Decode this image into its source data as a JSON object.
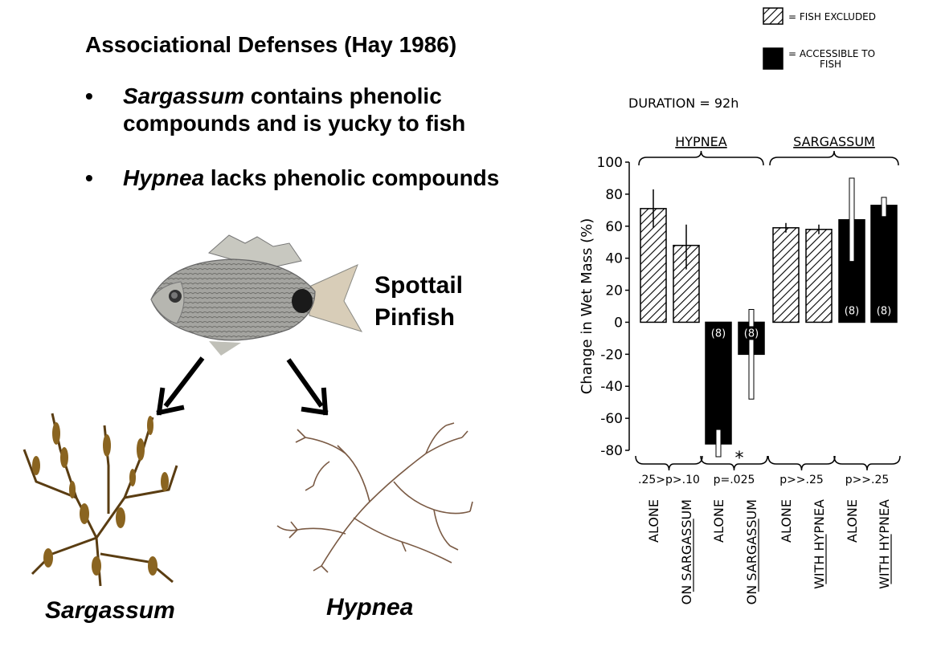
{
  "slide": {
    "title": "Associational Defenses (Hay 1986)",
    "bullets": [
      {
        "marker": "•",
        "italic": "Sargassum",
        "rest": " contains phenolic",
        "line2": "compounds and is yucky to fish"
      },
      {
        "marker": "•",
        "italic": "Hypnea",
        "rest": " lacks phenolic compounds"
      }
    ],
    "fish_label_line1": "Spottail",
    "fish_label_line2": "Pinfish",
    "caption_left": "Sargassum",
    "caption_right": "Hypnea"
  },
  "colors": {
    "text": "#000000",
    "fish_body": "#9a9a96",
    "sargassum": "#7a5a1e",
    "hypnea": "#8a6a50"
  },
  "chart_data": {
    "type": "bar",
    "duration_label": "DURATION = 92h",
    "legend": [
      {
        "label": "= FISH EXCLUDED",
        "pattern": "hatched"
      },
      {
        "label": "= ACCESSIBLE TO FISH",
        "pattern": "solid"
      }
    ],
    "legend_position": "top-right",
    "ylabel": "Change in Wet Mass (%)",
    "ylim": [
      -80,
      100
    ],
    "yticks": [
      100,
      80,
      60,
      40,
      20,
      0,
      -20,
      -40,
      -60,
      -80
    ],
    "groups": [
      {
        "label": "HYPNEA",
        "bars": [
          0,
          1,
          2,
          3
        ]
      },
      {
        "label": "SARGASSUM",
        "bars": [
          4,
          5,
          6,
          7
        ]
      }
    ],
    "bars": [
      {
        "label": "ALONE",
        "treatment": "FISH EXCLUDED",
        "value": 71,
        "err_low": 59,
        "err_high": 83,
        "n_label": ""
      },
      {
        "label": "ON SARGASSUM",
        "treatment": "FISH EXCLUDED",
        "value": 48,
        "err_low": 33,
        "err_high": 61,
        "n_label": ""
      },
      {
        "label": "ALONE",
        "treatment": "ACCESSIBLE TO FISH",
        "value": -76,
        "err_low": -84,
        "err_high": -67,
        "n_label": "(8)"
      },
      {
        "label": "ON SARGASSUM",
        "treatment": "ACCESSIBLE TO FISH",
        "value": -20,
        "err_low": -48,
        "err_high": 8,
        "n_label": "(8)"
      },
      {
        "label": "ALONE",
        "treatment": "FISH EXCLUDED",
        "value": 59,
        "err_low": 56,
        "err_high": 62,
        "n_label": ""
      },
      {
        "label": "WITH HYPNEA",
        "treatment": "FISH EXCLUDED",
        "value": 58,
        "err_low": 55,
        "err_high": 61,
        "n_label": ""
      },
      {
        "label": "ALONE",
        "treatment": "ACCESSIBLE TO FISH",
        "value": 64,
        "err_low": 38,
        "err_high": 90,
        "n_label": "(8)"
      },
      {
        "label": "WITH HYPNEA",
        "treatment": "ACCESSIBLE TO FISH",
        "value": 73,
        "err_low": 66,
        "err_high": 78,
        "n_label": "(8)"
      }
    ],
    "significance_marker": {
      "text": "*",
      "bar": 2
    },
    "pvalues": [
      {
        "text": ".25>p>.10",
        "bars": [
          0,
          1
        ]
      },
      {
        "text": "p=.025",
        "bars": [
          2,
          3
        ]
      },
      {
        "text": "p>>.25",
        "bars": [
          4,
          5
        ]
      },
      {
        "text": "p>>.25",
        "bars": [
          6,
          7
        ]
      }
    ]
  }
}
